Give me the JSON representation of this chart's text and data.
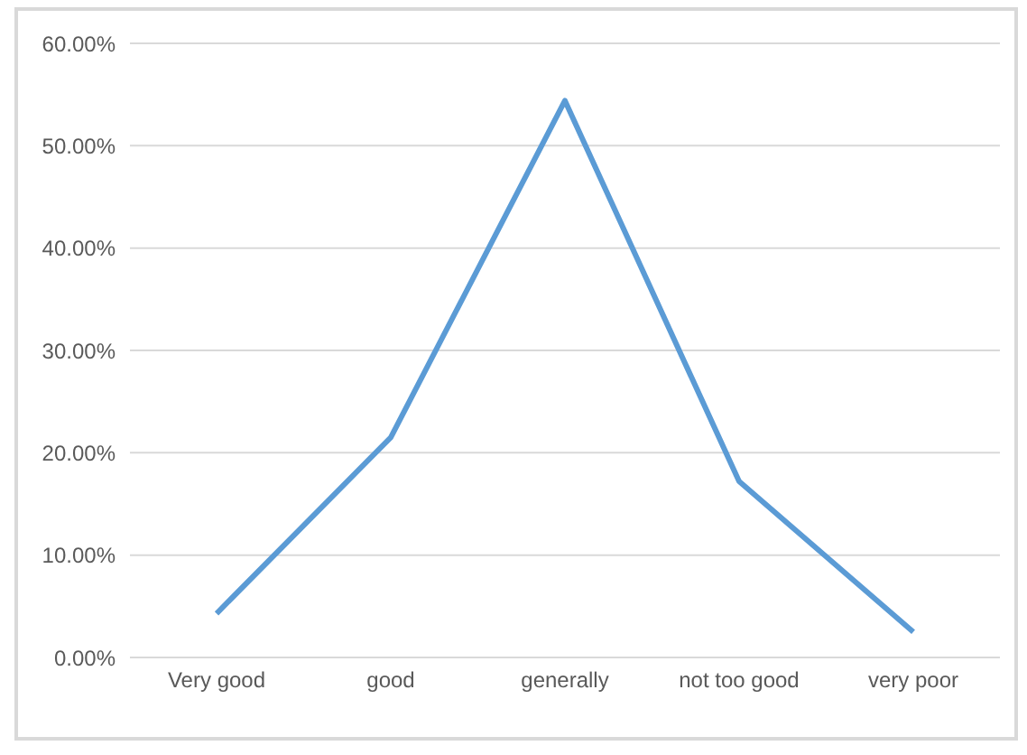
{
  "chart_data": {
    "type": "line",
    "categories": [
      "Very good",
      "good",
      "generally",
      "not too good",
      "very poor"
    ],
    "series": [
      {
        "color": "#5b9bd5",
        "values": [
          4.3,
          21.5,
          54.4,
          17.2,
          2.5
        ]
      }
    ],
    "ylim": [
      0,
      60
    ],
    "yticks": [
      {
        "value": 0,
        "label": "0.00%"
      },
      {
        "value": 10,
        "label": "10.00%"
      },
      {
        "value": 20,
        "label": "20.00%"
      },
      {
        "value": 30,
        "label": "30.00%"
      },
      {
        "value": 40,
        "label": "40.00%"
      },
      {
        "value": 50,
        "label": "50.00%"
      },
      {
        "value": 60,
        "label": "60.00%"
      }
    ],
    "grid": "y",
    "marker": "none",
    "line_style": "solid",
    "legend": false
  }
}
